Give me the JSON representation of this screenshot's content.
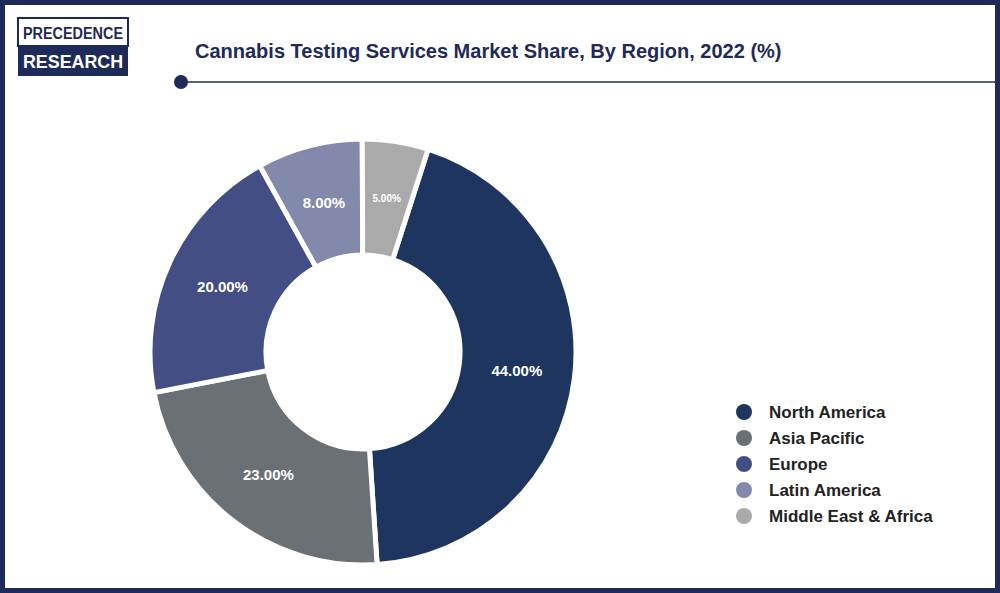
{
  "logo": [
    "PRECEDENCE",
    "RESEARCH"
  ],
  "chart_data": {
    "type": "pie",
    "title": "Cannabis Testing Services Market Share, By Region, 2022 (%)",
    "categories": [
      "North America",
      "Asia Pacific",
      "Europe",
      "Latin America",
      "Middle East & Africa"
    ],
    "values": [
      44,
      23,
      20,
      8,
      5
    ],
    "value_labels": [
      "44.00%",
      "23.00%",
      "20.00%",
      "8.00%",
      "5.00%"
    ],
    "colors": [
      "#1e3560",
      "#6b7075",
      "#434e85",
      "#8289ab",
      "#aaaaaa"
    ],
    "data_labels": true,
    "legend": "right"
  }
}
